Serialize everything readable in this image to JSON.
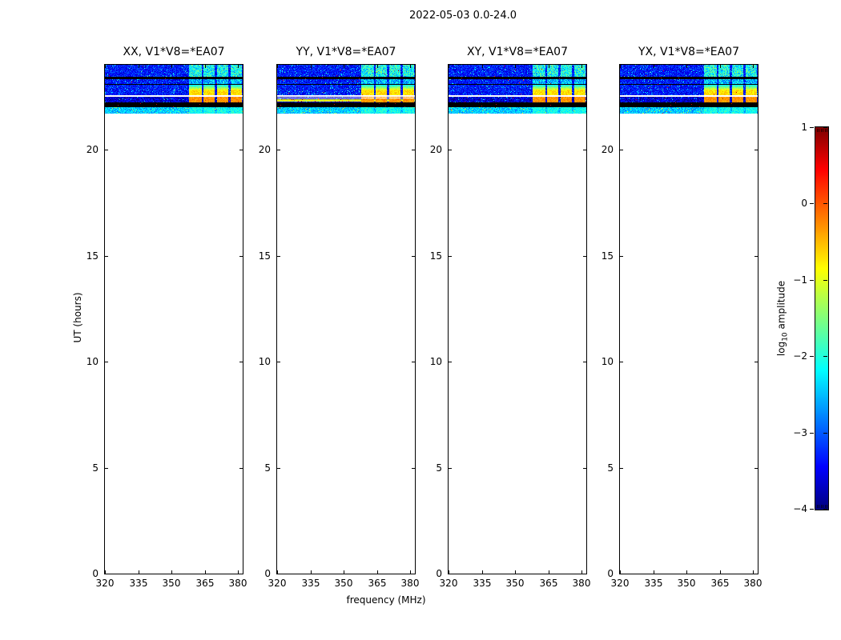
{
  "figure_title": "2022-05-03 0.0-24.0",
  "chart_data": {
    "type": "heatmap",
    "title": "2022-05-03 0.0-24.0",
    "description": "Four dynamic-spectrum (spectrogram) panels, frequency vs UT, for polarization products of baseline V1*V8=*EA07. Signal present only near 21.7-24.0 UT: blue noise band with flagged black rows, a white gap row, a thick black flagged band, a cyan band at the earliest times, and bright yellow/orange broadband bursts in four frequency groups near 358-382 MHz.",
    "xlabel": "frequency (MHz)",
    "ylabel": "UT (hours)",
    "x_range_mhz": [
      320,
      382
    ],
    "y_range_ut_hours": [
      0,
      24
    ],
    "x_tick_labels": [
      "320",
      "335",
      "350",
      "365",
      "380"
    ],
    "x_tick_values": [
      320,
      335,
      350,
      365,
      380
    ],
    "y_tick_labels": [
      "20",
      "15",
      "10",
      "5",
      "0"
    ],
    "y_tick_values": [
      20,
      15,
      10,
      5,
      0
    ],
    "panels": [
      {
        "id": "XX",
        "title": "XX, V1*V8=*EA07"
      },
      {
        "id": "YY",
        "title": "YY, V1*V8=*EA07",
        "features": {
          "yellow_stripe_ut": [
            22.26,
            22.37
          ],
          "yellow_stripe_value": -0.95,
          "white_line_ut": [
            22.4,
            22.44
          ]
        }
      },
      {
        "id": "XY",
        "title": "XY, V1*V8=*EA07"
      },
      {
        "id": "YX",
        "title": "YX, V1*V8=*EA07"
      }
    ],
    "data_present_ut_hours": [
      21.7,
      24.0
    ],
    "burst_freq_groups_mhz": [
      [
        358.0,
        363.5
      ],
      [
        364.5,
        369.5
      ],
      [
        370.5,
        375.5
      ],
      [
        376.5,
        381.5
      ]
    ],
    "time_bands": [
      {
        "ut": [
          23.43,
          24.0
        ],
        "kind": "noise",
        "base": -3.35,
        "burst_value": -2.1,
        "burst_spread": 0.7
      },
      {
        "ut": [
          23.33,
          23.43
        ],
        "kind": "flagged"
      },
      {
        "ut": [
          23.1,
          23.33
        ],
        "kind": "noise",
        "base": -3.35,
        "burst_value": -2.5,
        "burst_spread": 0.6
      },
      {
        "ut": [
          23.04,
          23.1
        ],
        "kind": "flagged"
      },
      {
        "ut": [
          22.58,
          23.04
        ],
        "kind": "noise",
        "base": -3.35,
        "burst_value": -0.7,
        "burst_spread": 0.25,
        "burst_gradient": true
      },
      {
        "ut": [
          22.5,
          22.58
        ],
        "kind": "blank"
      },
      {
        "ut": [
          22.23,
          22.5
        ],
        "kind": "noise",
        "base": -3.65,
        "burst_value": -0.3,
        "burst_spread": 0.2
      },
      {
        "ut": [
          22.0,
          22.23
        ],
        "kind": "flagged"
      },
      {
        "ut": [
          21.7,
          22.0
        ],
        "kind": "noise",
        "base": -2.45,
        "burst_value": -2.1,
        "burst_spread": 0.35
      }
    ],
    "colorbar": {
      "label_pre": "log",
      "label_sub": "10",
      "label_post": " amplitude",
      "tick_labels": [
        "1",
        "0",
        "−1",
        "−2",
        "−3",
        "−4"
      ],
      "tick_values": [
        1,
        0,
        -1,
        -2,
        -3,
        -4
      ],
      "range": [
        -4,
        1
      ],
      "colormap": "jet"
    }
  }
}
